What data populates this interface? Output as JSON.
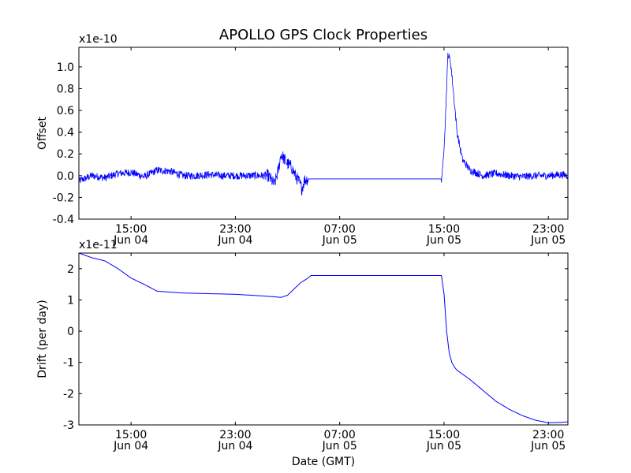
{
  "figure_title": "APOLLO GPS Clock Properties",
  "chart_data": [
    {
      "type": "line",
      "title": "APOLLO GPS Clock Properties",
      "xlabel": "",
      "ylabel": "Offset",
      "scale_label": "x1e-10",
      "x_units": "hours since 2013-06-04 11:00 GMT",
      "xlim": [
        0,
        37.5
      ],
      "ylim": [
        -0.4,
        1.18
      ],
      "grid": false,
      "line_color": "#0000ff",
      "yticks": [
        -0.4,
        -0.2,
        0.0,
        0.2,
        0.4,
        0.6,
        0.8,
        1.0
      ],
      "ytick_labels": [
        "-0.4",
        "-0.2",
        "0.0",
        "0.2",
        "0.4",
        "0.6",
        "0.8",
        "1.0"
      ],
      "xticks": [
        {
          "x": 4,
          "time": "15:00",
          "date": "Jun 04"
        },
        {
          "x": 12,
          "time": "23:00",
          "date": "Jun 04"
        },
        {
          "x": 20,
          "time": "07:00",
          "date": "Jun 05"
        },
        {
          "x": 28,
          "time": "15:00",
          "date": "Jun 05"
        },
        {
          "x": 36,
          "time": "23:00",
          "date": "Jun 05"
        }
      ],
      "series": [
        {
          "name": "offset",
          "noisy": true,
          "x": [
            0,
            1,
            2,
            3,
            4,
            5,
            6,
            7,
            8,
            9,
            10,
            11,
            12,
            13,
            14,
            14.5,
            15,
            15.3,
            15.5,
            15.7,
            16,
            16.3,
            16.6,
            16.9,
            17.1,
            17.3,
            17.6,
            18,
            20,
            24,
            26,
            27.8,
            27.9,
            28.1,
            28.3,
            28.5,
            28.7,
            29,
            29.4,
            30,
            31,
            32,
            33,
            34,
            35,
            36,
            37,
            37.5
          ],
          "y": [
            -0.05,
            0.0,
            -0.02,
            0.02,
            0.03,
            -0.01,
            0.05,
            0.04,
            0.0,
            0.0,
            0.01,
            0.0,
            0.0,
            0.0,
            0.0,
            0.0,
            -0.08,
            0.05,
            0.2,
            0.16,
            0.11,
            0.08,
            0.0,
            -0.06,
            -0.12,
            -0.04,
            -0.03,
            -0.03,
            -0.03,
            -0.03,
            -0.03,
            -0.03,
            0.05,
            0.5,
            1.12,
            1.05,
            0.8,
            0.4,
            0.15,
            0.05,
            0.0,
            0.02,
            0.0,
            -0.01,
            0.0,
            0.0,
            0.01,
            0.0
          ]
        }
      ]
    },
    {
      "type": "line",
      "title": "",
      "xlabel": "Date (GMT)",
      "ylabel": "Drift (per day)",
      "scale_label": "x1e-11",
      "x_units": "hours since 2013-06-04 11:00 GMT",
      "xlim": [
        0,
        37.5
      ],
      "ylim": [
        -3,
        2.5
      ],
      "grid": false,
      "line_color": "#0000ff",
      "yticks": [
        -3,
        -2,
        -1,
        0,
        1,
        2
      ],
      "ytick_labels": [
        "-3",
        "-2",
        "-1",
        "0",
        "1",
        "2"
      ],
      "xticks": [
        {
          "x": 4,
          "time": "15:00",
          "date": "Jun 04"
        },
        {
          "x": 12,
          "time": "23:00",
          "date": "Jun 04"
        },
        {
          "x": 20,
          "time": "07:00",
          "date": "Jun 05"
        },
        {
          "x": 28,
          "time": "15:00",
          "date": "Jun 05"
        },
        {
          "x": 36,
          "time": "23:00",
          "date": "Jun 05"
        }
      ],
      "series": [
        {
          "name": "drift",
          "noisy": false,
          "x": [
            0,
            1,
            2,
            3,
            3.5,
            4,
            5,
            6,
            7,
            8,
            10,
            12,
            14,
            15,
            15.5,
            16,
            16.5,
            17,
            17.5,
            17.8,
            20,
            24,
            26,
            27.8,
            28.0,
            28.2,
            28.4,
            28.6,
            28.8,
            29,
            30,
            31,
            32,
            33,
            34,
            35,
            36,
            37,
            37.5
          ],
          "y": [
            2.5,
            2.35,
            2.25,
            2.0,
            1.85,
            1.7,
            1.5,
            1.28,
            1.25,
            1.22,
            1.2,
            1.18,
            1.13,
            1.1,
            1.08,
            1.15,
            1.35,
            1.55,
            1.68,
            1.78,
            1.78,
            1.78,
            1.78,
            1.78,
            1.2,
            0.0,
            -0.7,
            -1.0,
            -1.15,
            -1.25,
            -1.55,
            -1.9,
            -2.25,
            -2.5,
            -2.7,
            -2.85,
            -2.93,
            -2.92,
            -2.9
          ]
        }
      ]
    }
  ]
}
